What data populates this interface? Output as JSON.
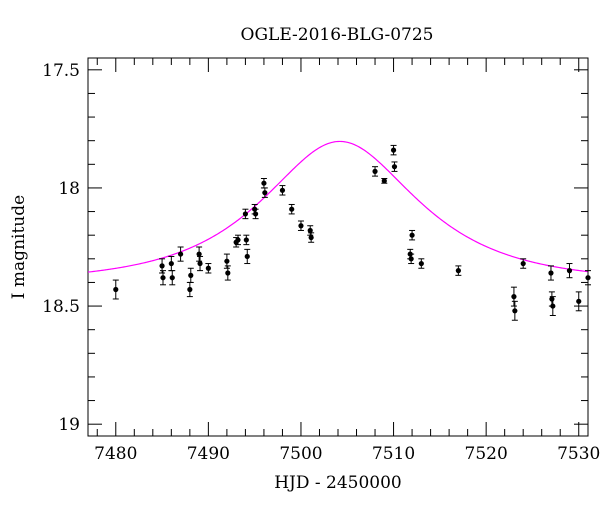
{
  "chart_data": {
    "type": "scatter",
    "title": "OGLE-2016-BLG-0725",
    "xlabel": "HJD - 2450000",
    "ylabel": "I magnitude",
    "xlim": [
      7477,
      7531
    ],
    "ylim": [
      19.05,
      17.45
    ],
    "y_inverted": true,
    "grid": false,
    "x_ticks": [
      7480,
      7490,
      7500,
      7510,
      7520,
      7530
    ],
    "y_ticks": [
      17.5,
      18,
      18.5,
      19
    ],
    "y_tick_labels": [
      "17.5",
      "18",
      "18.5",
      "19"
    ],
    "x_minor_step": 2,
    "y_minor_step": 0.1,
    "colors": {
      "data": "#000000",
      "model": "#ff00ff"
    },
    "model": {
      "t0": 7504.2,
      "u0": 0.67,
      "tE": 12.5,
      "base": 18.4,
      "blend_fraction": 1.0
    },
    "series": [
      {
        "x": [
          7480.0,
          7485.0,
          7485.1,
          7486.0,
          7486.1,
          7487.0,
          7488.0,
          7488.1,
          7489.0,
          7489.1,
          7490.0,
          7492.0,
          7492.1,
          7493.0,
          7493.2,
          7494.0,
          7494.1,
          7494.2,
          7495.0,
          7495.1,
          7496.0,
          7496.1,
          7498.0,
          7499.0,
          7500.0,
          7501.0,
          7501.1,
          7508.0,
          7509.0,
          7510.0,
          7510.1,
          7511.8,
          7511.9,
          7512.0,
          7513.0,
          7517.0,
          7523.0,
          7523.1,
          7524.0,
          7527.0,
          7527.1,
          7527.2,
          7529.0,
          7530.0,
          7531.0
        ],
        "y": [
          18.43,
          18.33,
          18.38,
          18.32,
          18.38,
          18.28,
          18.43,
          18.37,
          18.28,
          18.32,
          18.34,
          18.31,
          18.36,
          18.23,
          18.22,
          18.11,
          18.22,
          18.29,
          18.09,
          18.11,
          17.98,
          18.02,
          18.01,
          18.09,
          18.16,
          18.18,
          18.21,
          17.93,
          17.97,
          17.84,
          17.91,
          18.28,
          18.3,
          18.2,
          18.32,
          18.35,
          18.46,
          18.52,
          18.32,
          18.36,
          18.47,
          18.5,
          18.35,
          18.48,
          18.38
        ],
        "err": [
          0.04,
          0.03,
          0.03,
          0.03,
          0.03,
          0.03,
          0.03,
          0.03,
          0.03,
          0.03,
          0.02,
          0.03,
          0.03,
          0.02,
          0.02,
          0.02,
          0.02,
          0.03,
          0.02,
          0.02,
          0.02,
          0.02,
          0.02,
          0.02,
          0.02,
          0.02,
          0.02,
          0.02,
          0.01,
          0.02,
          0.02,
          0.02,
          0.02,
          0.02,
          0.02,
          0.02,
          0.04,
          0.04,
          0.02,
          0.03,
          0.03,
          0.04,
          0.03,
          0.04,
          0.03
        ]
      }
    ]
  }
}
